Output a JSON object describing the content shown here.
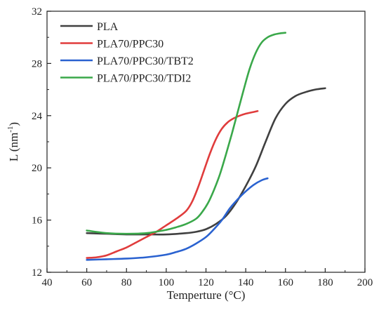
{
  "chart_data": {
    "type": "line",
    "xlabel": "Temperture (°C)",
    "ylabel_main": "L (nm",
    "ylabel_sup": "-1",
    "ylabel_close": ")",
    "xlim": [
      40,
      200
    ],
    "ylim": [
      12,
      32
    ],
    "xticks": [
      40,
      60,
      80,
      100,
      120,
      140,
      160,
      180,
      200
    ],
    "yticks": [
      12,
      16,
      20,
      24,
      28,
      32
    ],
    "grid": false,
    "legend_position": "top-left",
    "series": [
      {
        "name": "PLA",
        "color": "#404040",
        "x": [
          60,
          70,
          80,
          90,
          100,
          110,
          115,
          120,
          125,
          130,
          135,
          140,
          145,
          150,
          155,
          160,
          165,
          170,
          175,
          180
        ],
        "y": [
          15.0,
          14.95,
          14.9,
          14.9,
          14.9,
          15.0,
          15.1,
          15.3,
          15.7,
          16.3,
          17.3,
          18.6,
          20.1,
          22.0,
          23.8,
          24.9,
          25.5,
          25.8,
          26.0,
          26.1
        ]
      },
      {
        "name": "PLA70/PPC30",
        "color": "#e03c3c",
        "x": [
          60,
          65,
          70,
          75,
          80,
          85,
          90,
          95,
          100,
          105,
          110,
          113,
          116,
          119,
          122,
          125,
          128,
          131,
          134,
          137,
          140,
          143,
          146
        ],
        "y": [
          13.1,
          13.15,
          13.3,
          13.6,
          13.9,
          14.3,
          14.7,
          15.1,
          15.6,
          16.1,
          16.7,
          17.4,
          18.5,
          19.8,
          21.1,
          22.2,
          23.0,
          23.5,
          23.8,
          24.0,
          24.15,
          24.25,
          24.35
        ]
      },
      {
        "name": "PLA70/PPC30/TBT2",
        "color": "#2a62d0",
        "x": [
          60,
          70,
          80,
          90,
          100,
          105,
          110,
          115,
          120,
          124,
          128,
          132,
          136,
          140,
          144,
          148,
          151
        ],
        "y": [
          12.95,
          13.0,
          13.05,
          13.15,
          13.35,
          13.55,
          13.8,
          14.2,
          14.7,
          15.3,
          16.0,
          16.9,
          17.6,
          18.2,
          18.7,
          19.05,
          19.2
        ]
      },
      {
        "name": "PLA70/PPC30/TDI2",
        "color": "#3aa84a",
        "x": [
          60,
          70,
          80,
          90,
          100,
          105,
          110,
          115,
          118,
          121,
          124,
          127,
          130,
          133,
          136,
          139,
          142,
          145,
          148,
          151,
          154,
          157,
          160
        ],
        "y": [
          15.2,
          15.0,
          14.95,
          15.0,
          15.25,
          15.45,
          15.7,
          16.1,
          16.6,
          17.3,
          18.3,
          19.5,
          21.0,
          22.6,
          24.3,
          26.0,
          27.6,
          28.8,
          29.6,
          30.0,
          30.2,
          30.3,
          30.35
        ]
      }
    ]
  }
}
